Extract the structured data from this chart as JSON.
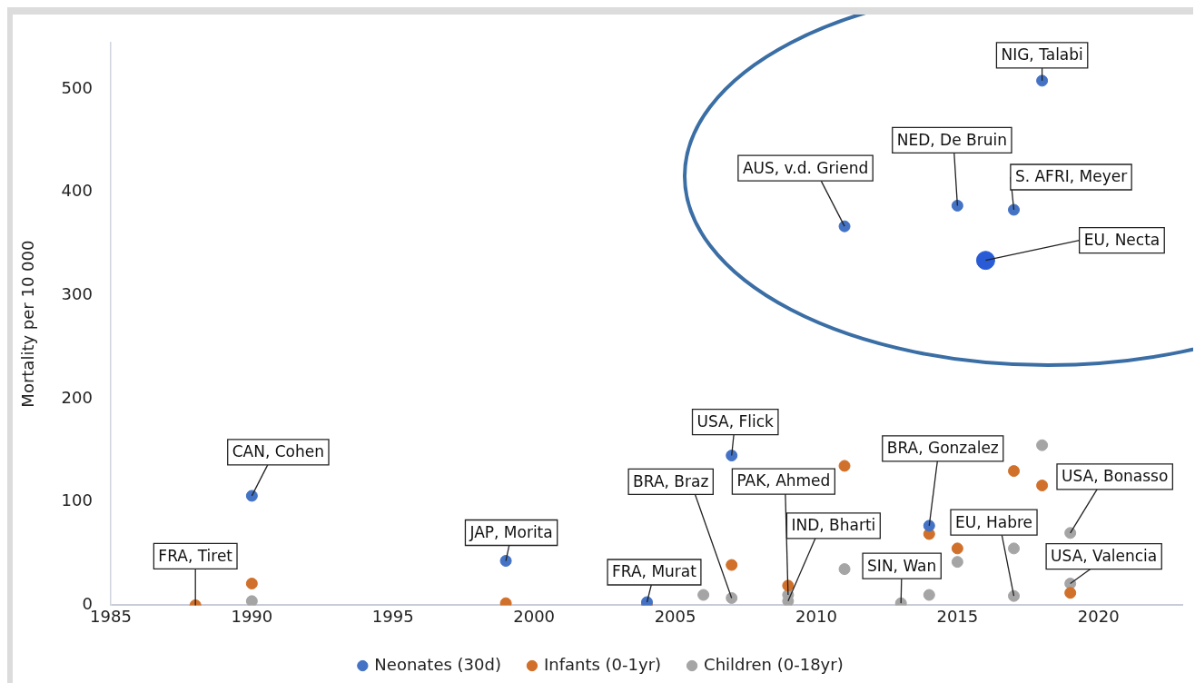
{
  "chart_data": {
    "type": "scatter",
    "ylabel": "Mortality per 10 000",
    "xlim": [
      1985,
      2023
    ],
    "xticks": [
      1985,
      1990,
      1995,
      2000,
      2005,
      2010,
      2015,
      2020
    ],
    "ylim": [
      0,
      545
    ],
    "yticks": [
      0,
      100,
      200,
      300,
      400,
      500
    ],
    "grid": false,
    "legend": "bottom",
    "marker": "circle",
    "series": [
      {
        "name": "Neonates (30d)",
        "color": "#4472c4",
        "x": [
          1990,
          1999,
          2004,
          2007,
          2014,
          2011,
          2015,
          2017,
          2018
        ],
        "values": [
          106,
          43,
          3,
          145,
          77,
          367,
          387,
          383,
          508
        ]
      },
      {
        "name": "Infants (0-1yr)",
        "color": "#d0702a",
        "x": [
          1988,
          1990,
          1999,
          2004,
          2007,
          2009,
          2011,
          2014,
          2015,
          2017,
          2018,
          2019
        ],
        "values": [
          0,
          21,
          2,
          0,
          39,
          19,
          135,
          69,
          55,
          130,
          116,
          12
        ]
      },
      {
        "name": "Children (0-18yr)",
        "color": "#a5a5a5",
        "x": [
          1990,
          2006,
          2007,
          2009,
          2009,
          2011,
          2013,
          2014,
          2015,
          2017,
          2017,
          2018,
          2019,
          2019
        ],
        "values": [
          4,
          10,
          7,
          10,
          4,
          35,
          2,
          10,
          42,
          55,
          9,
          155,
          70,
          21
        ]
      },
      {
        "color": "#2a5bd7",
        "x": [
          2016
        ],
        "values": [
          334
        ]
      }
    ],
    "annotations": [
      {
        "text": "FRA, Tiret",
        "x": 1988,
        "y": 0
      },
      {
        "text": "CAN, Cohen",
        "x": 1990,
        "y": 106
      },
      {
        "text": "JAP, Morita",
        "x": 1999,
        "y": 43
      },
      {
        "text": "FRA, Murat",
        "x": 2004,
        "y": 3
      },
      {
        "text": "USA, Flick",
        "x": 2007,
        "y": 145
      },
      {
        "text": "BRA, Braz",
        "x": 2007,
        "y": 7
      },
      {
        "text": "PAK, Ahmed",
        "x": 2009,
        "y": 10
      },
      {
        "text": "IND, Bharti",
        "x": 2009,
        "y": 4
      },
      {
        "text": "SIN, Wan",
        "x": 2013,
        "y": 2
      },
      {
        "text": "BRA, Gonzalez",
        "x": 2014,
        "y": 77
      },
      {
        "text": "EU, Habre",
        "x": 2017,
        "y": 9
      },
      {
        "text": "USA, Bonasso",
        "x": 2019,
        "y": 70
      },
      {
        "text": "USA, Valencia",
        "x": 2019,
        "y": 21
      },
      {
        "text": "AUS, v.d. Griend",
        "x": 2011,
        "y": 367
      },
      {
        "text": "NED, De Bruin",
        "x": 2015,
        "y": 387
      },
      {
        "text": "S. AFRI, Meyer",
        "x": 2017,
        "y": 383
      },
      {
        "text": "NIG, Talabi",
        "x": 2018,
        "y": 508
      },
      {
        "text": "EU, Necta",
        "x": 2016,
        "y": 334
      }
    ]
  }
}
